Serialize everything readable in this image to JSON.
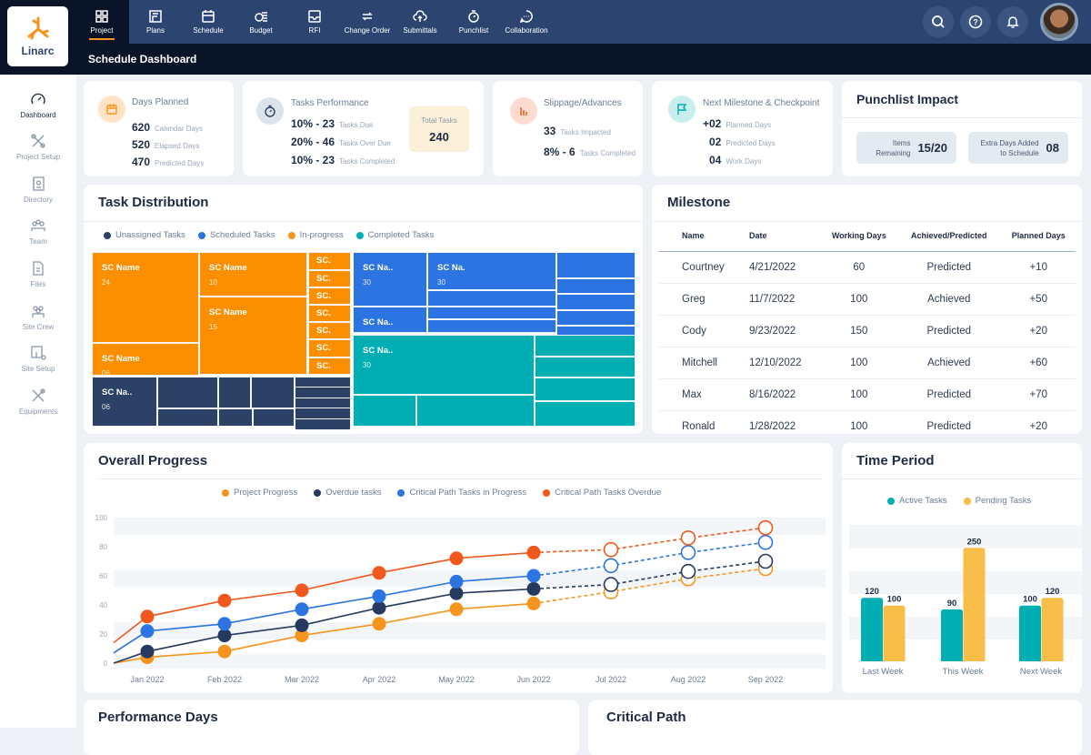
{
  "app": {
    "logo_text": "Linarc",
    "page_title": "Schedule Dashboard"
  },
  "nav": [
    {
      "label": "Project",
      "icon": "grid-icon",
      "active": true
    },
    {
      "label": "Plans",
      "icon": "plans-icon"
    },
    {
      "label": "Schedule",
      "icon": "calendar-icon"
    },
    {
      "label": "Budget",
      "icon": "coins-icon"
    },
    {
      "label": "RFI",
      "icon": "inbox-icon"
    },
    {
      "label": "Change Order",
      "icon": "swap-icon"
    },
    {
      "label": "Submittals",
      "icon": "cloud-upload-icon"
    },
    {
      "label": "Punchlist",
      "icon": "stopwatch-icon"
    },
    {
      "label": "Collaboration",
      "icon": "chat-icon"
    }
  ],
  "header_actions": [
    "search-icon",
    "help-icon",
    "bell-icon",
    "avatar"
  ],
  "sidebar": [
    {
      "label": "Dashboard",
      "icon": "gauge-icon",
      "active": true
    },
    {
      "label": "Project Setup",
      "icon": "tools-icon"
    },
    {
      "label": "Directory",
      "icon": "contact-book-icon"
    },
    {
      "label": "Team",
      "icon": "team-icon"
    },
    {
      "label": "Files",
      "icon": "file-icon"
    },
    {
      "label": "Site Crew",
      "icon": "crew-icon"
    },
    {
      "label": "Site  Setup",
      "icon": "site-setup-icon"
    },
    {
      "label": "Equipments",
      "icon": "wrench-icon"
    }
  ],
  "kpis": {
    "days_planned": {
      "title": "Days Planned",
      "rows": [
        {
          "value": "620",
          "label": "Calendar Days"
        },
        {
          "value": "520",
          "label": "Elapsed Days"
        },
        {
          "value": "470",
          "label": "Predicted Days"
        }
      ]
    },
    "tasks_performance": {
      "title": "Tasks Performance",
      "rows": [
        {
          "value": "10% - 23",
          "label": "Tasks Due"
        },
        {
          "value": "20% - 46",
          "label": "Tasks Over Due"
        },
        {
          "value": "10% - 23",
          "label": "Tasks Completed"
        }
      ],
      "total_label": "Total Tasks",
      "total_value": "240"
    },
    "slippage": {
      "title": "Slippage/Advances",
      "rows": [
        {
          "value": "33",
          "label": "Tasks Impacted"
        },
        {
          "value": "8% - 6",
          "label": "Tasks Completed"
        }
      ]
    },
    "next_milestone": {
      "title": "Next Milestone & Checkpoint",
      "rows": [
        {
          "value": "+02",
          "label": "Planned Days"
        },
        {
          "value": "02",
          "label": "Predicted Days"
        },
        {
          "value": "04",
          "label": "Work Days"
        }
      ]
    },
    "punchlist": {
      "title": "Punchlist Impact",
      "items_label": "Items Remaining",
      "items_value": "15/20",
      "extra_label": "Extra Days Added to Schedule",
      "extra_value": "08"
    }
  },
  "task_distribution": {
    "title": "Task Distribution",
    "legend": [
      {
        "label": "Unassigned Tasks",
        "color": "#2b4166"
      },
      {
        "label": "Scheduled Tasks",
        "color": "#2b74e2"
      },
      {
        "label": "In-progress",
        "color": "#f7941d"
      },
      {
        "label": "Completed Tasks",
        "color": "#00aeb3"
      }
    ]
  },
  "chart_data": [
    {
      "type": "treemap",
      "groups": [
        {
          "name": "In-progress",
          "color": "#fb8f00",
          "items": [
            {
              "label": "SC Name",
              "value": "24"
            },
            {
              "label": "SC Name",
              "value": "06"
            },
            {
              "label": "SC Name",
              "value": "10"
            },
            {
              "label": "SC Name",
              "value": "15"
            },
            {
              "label": "SC."
            },
            {
              "label": "SC."
            },
            {
              "label": "SC."
            },
            {
              "label": "SC."
            },
            {
              "label": "SC."
            },
            {
              "label": "SC."
            },
            {
              "label": "SC."
            }
          ]
        },
        {
          "name": "Unassigned Tasks",
          "color": "#2b4166",
          "items": [
            {
              "label": "SC Na..",
              "value": "06"
            }
          ]
        },
        {
          "name": "Scheduled Tasks",
          "color": "#2b74e2",
          "items": [
            {
              "label": "SC Na..",
              "value": "30"
            },
            {
              "label": "SC Na..",
              "value": "30"
            },
            {
              "label": "SC Na.",
              "value": "30"
            }
          ]
        },
        {
          "name": "Completed Tasks",
          "color": "#00aeb3",
          "items": [
            {
              "label": "SC Na..",
              "value": "30"
            }
          ]
        }
      ]
    },
    {
      "type": "line",
      "title": "Overall Progress",
      "categories": [
        "",
        "Jan 2022",
        "Feb 2022",
        "Mar 2022",
        "Apr 2022",
        "May 2022",
        "Jun 2022",
        "Jul 2022",
        "Aug 2022",
        "Sep 2022"
      ],
      "actual_through": "Jun 2022",
      "ylim": [
        0,
        100
      ],
      "yticks": [
        0,
        20,
        40,
        60,
        80,
        100
      ],
      "legend_position": "top",
      "series": [
        {
          "name": "Project Progress",
          "color": "#f7941d",
          "values": [
            0,
            4,
            8,
            19,
            27,
            37,
            41,
            49,
            58,
            65
          ]
        },
        {
          "name": "Overdue tasks",
          "color": "#253a5e",
          "values": [
            0,
            8,
            19,
            26,
            38,
            48,
            51,
            54,
            63,
            70
          ]
        },
        {
          "name": "Critical Path Tasks in Progress",
          "color": "#2b74e2",
          "values": [
            7,
            22,
            27,
            37,
            46,
            56,
            60,
            67,
            76,
            83
          ]
        },
        {
          "name": "Critical Path Tasks Overdue",
          "color": "#f0581c",
          "values": [
            14,
            32,
            43,
            50,
            62,
            72,
            76,
            78,
            86,
            93
          ]
        }
      ]
    },
    {
      "type": "bar",
      "title": "Time Period",
      "categories": [
        "Last Week",
        "This Week",
        "Next Week"
      ],
      "legend_position": "top",
      "series": [
        {
          "name": "Active Tasks",
          "color": "#00aeb3",
          "values": [
            120,
            90,
            100
          ]
        },
        {
          "name": "Pending Tasks",
          "color": "#f9bd4a",
          "values": [
            100,
            250,
            120
          ]
        }
      ]
    }
  ],
  "milestone": {
    "title": "Milestone",
    "columns": [
      "Name",
      "Date",
      "Working Days",
      "Achieved/Predicted",
      "Planned Days"
    ],
    "rows": [
      [
        "Courtney",
        "4/21/2022",
        "60",
        "Predicted",
        "+10"
      ],
      [
        "Greg",
        "11/7/2022",
        "100",
        "Achieved",
        "+50"
      ],
      [
        "Cody",
        "9/23/2022",
        "150",
        "Predicted",
        "+20"
      ],
      [
        "Mitchell",
        "12/10/2022",
        "100",
        "Achieved",
        "+60"
      ],
      [
        "Max",
        "8/16/2022",
        "100",
        "Predicted",
        "+70"
      ],
      [
        "Ronald",
        "1/28/2022",
        "100",
        "Predicted",
        "+20"
      ]
    ]
  },
  "bottom": {
    "performance_title": "Performance Days",
    "critical_title": "Critical Path"
  }
}
